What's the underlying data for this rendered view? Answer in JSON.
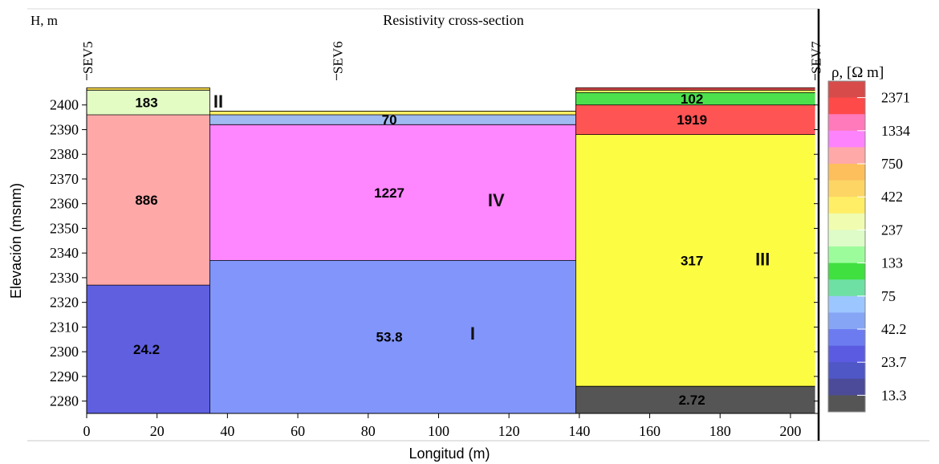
{
  "chart_data": {
    "type": "heatmap",
    "title": "Resistivity cross-section",
    "top_left_label": "H, m",
    "xlabel": "Longitud (m)",
    "ylabel": "Elevación (msnm)",
    "xlim": [
      0,
      208
    ],
    "ylim": [
      2275,
      2410
    ],
    "xticks": [
      0,
      20,
      40,
      60,
      80,
      100,
      120,
      140,
      160,
      180,
      200
    ],
    "yticks": [
      2280,
      2290,
      2300,
      2310,
      2320,
      2330,
      2340,
      2350,
      2360,
      2370,
      2380,
      2390,
      2400
    ],
    "grid": false,
    "soundings": [
      {
        "name": "SEV5",
        "x": 0
      },
      {
        "name": "SEV6",
        "x": 71
      },
      {
        "name": "SEV7",
        "x": 207
      }
    ],
    "layers": [
      {
        "x0": 0,
        "x1": 35,
        "top": 2407,
        "bottom": 2406,
        "resistivity": "",
        "color": "#f6d84a"
      },
      {
        "x0": 0,
        "x1": 35,
        "top": 2406,
        "bottom": 2396,
        "resistivity": "183",
        "color": "#e3fcc4"
      },
      {
        "x0": 0,
        "x1": 35,
        "top": 2396,
        "bottom": 2327,
        "resistivity": "886",
        "color": "#ffa8a8"
      },
      {
        "x0": 0,
        "x1": 35,
        "top": 2327,
        "bottom": 2275,
        "resistivity": "24.2",
        "color": "#5f5fe0"
      },
      {
        "x0": 35,
        "x1": 139,
        "top": 2397.5,
        "bottom": 2396,
        "resistivity": "",
        "color": "#ffee66"
      },
      {
        "x0": 35,
        "x1": 139,
        "top": 2396,
        "bottom": 2392,
        "resistivity": "70",
        "color": "#a0baf2"
      },
      {
        "x0": 35,
        "x1": 139,
        "top": 2392,
        "bottom": 2337,
        "resistivity": "1227",
        "color": "#fe86fe"
      },
      {
        "x0": 35,
        "x1": 139,
        "top": 2337,
        "bottom": 2275,
        "resistivity": "53.8",
        "color": "#8295fb"
      },
      {
        "x0": 139,
        "x1": 207,
        "top": 2407,
        "bottom": 2406,
        "resistivity": "",
        "color": "#d94a4a"
      },
      {
        "x0": 139,
        "x1": 207,
        "top": 2406,
        "bottom": 2405,
        "resistivity": "",
        "color": "#ffee66"
      },
      {
        "x0": 139,
        "x1": 207,
        "top": 2405,
        "bottom": 2400,
        "resistivity": "102",
        "color": "#4de04d"
      },
      {
        "x0": 139,
        "x1": 207,
        "top": 2400,
        "bottom": 2388,
        "resistivity": "1919",
        "color": "#ff5454"
      },
      {
        "x0": 139,
        "x1": 207,
        "top": 2388,
        "bottom": 2286,
        "resistivity": "317",
        "color": "#fcfc42"
      },
      {
        "x0": 139,
        "x1": 207,
        "top": 2286,
        "bottom": 2275,
        "resistivity": "2.72",
        "color": "#555555"
      }
    ],
    "zones": [
      {
        "label": "II",
        "x": 36,
        "y": 2399
      },
      {
        "label": "IV",
        "x": 114,
        "y": 2359
      },
      {
        "label": "III",
        "x": 190,
        "y": 2335
      },
      {
        "label": "I",
        "x": 109,
        "y": 2305
      }
    ],
    "legend": {
      "title": "ρ, [Ω m]",
      "placement": "right",
      "colors": [
        "#d84b4b",
        "#ff4a4a",
        "#ff7aba",
        "#fc83fc",
        "#ffa9a9",
        "#fdbf5c",
        "#fcd565",
        "#ffee66",
        "#f0fcb0",
        "#ddfcc8",
        "#9cfc9c",
        "#40e040",
        "#6fe0a3",
        "#9cc6ff",
        "#86a5f5",
        "#6c7cf0",
        "#5b5be2",
        "#4f57c6",
        "#4b4b99",
        "#555555"
      ],
      "labels": [
        "2371",
        "1334",
        "750",
        "422",
        "237",
        "133",
        "75",
        "42.2",
        "23.7",
        "13.3"
      ]
    }
  }
}
